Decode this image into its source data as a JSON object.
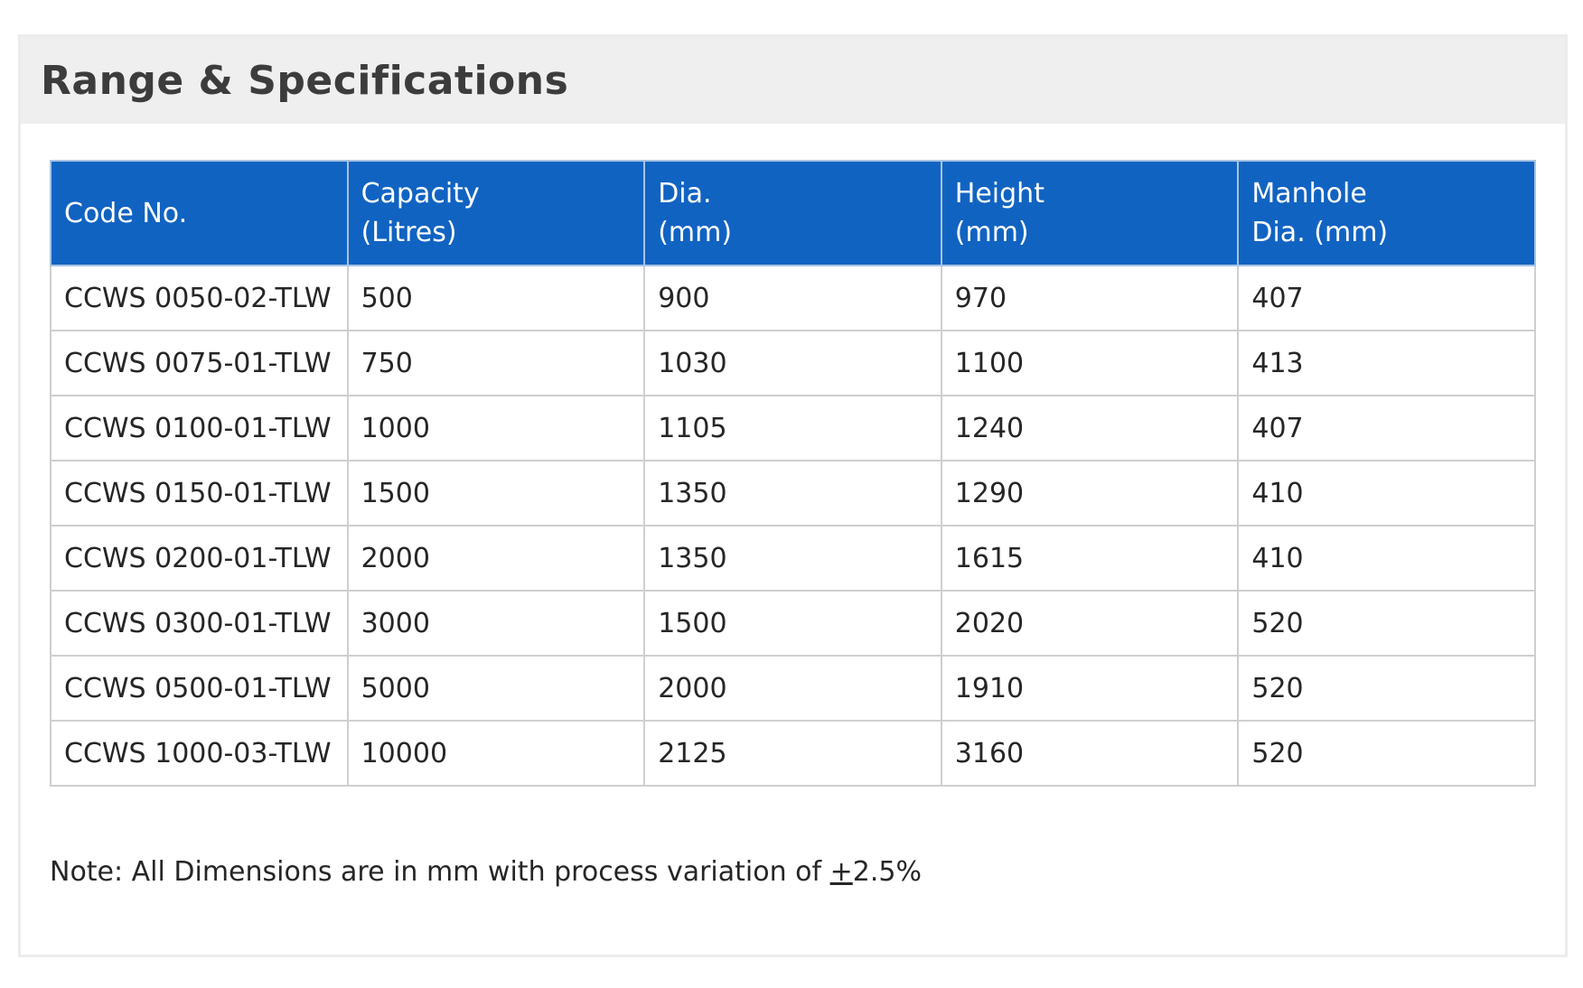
{
  "header": {
    "title": "Range & Specifications"
  },
  "table": {
    "columns": [
      {
        "line1": "Code No.",
        "line2": ""
      },
      {
        "line1": "Capacity",
        "line2": "(Litres)"
      },
      {
        "line1": "Dia.",
        "line2": "(mm)"
      },
      {
        "line1": "Height",
        "line2": "(mm)"
      },
      {
        "line1": "Manhole",
        "line2": "Dia. (mm)"
      }
    ],
    "rows": [
      [
        "CCWS 0050-02-TLW",
        "500",
        "900",
        "970",
        "407"
      ],
      [
        "CCWS 0075-01-TLW",
        "750",
        "1030",
        "1100",
        "413"
      ],
      [
        "CCWS 0100-01-TLW",
        "1000",
        "1105",
        "1240",
        "407"
      ],
      [
        "CCWS 0150-01-TLW",
        "1500",
        "1350",
        "1290",
        "410"
      ],
      [
        "CCWS 0200-01-TLW",
        "2000",
        "1350",
        "1615",
        "410"
      ],
      [
        "CCWS 0300-01-TLW",
        "3000",
        "1500",
        "2020",
        "520"
      ],
      [
        "CCWS 0500-01-TLW",
        "5000",
        "2000",
        "1910",
        "520"
      ],
      [
        "CCWS 1000-03-TLW",
        "10000",
        "2125",
        "3160",
        "520"
      ]
    ]
  },
  "note": {
    "prefix": "Note: All Dimensions are in mm with process variation of ",
    "symbol": "+",
    "value": "2.5%"
  },
  "colors": {
    "header_blue": "#1163c2",
    "panel_header_bg": "#efefef",
    "border": "#cfcfcf"
  }
}
